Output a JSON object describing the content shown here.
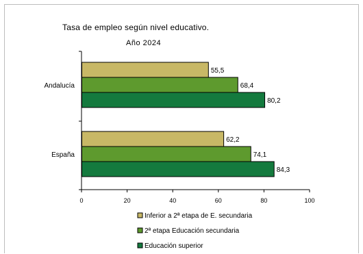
{
  "chart_data": {
    "type": "bar",
    "orientation": "horizontal",
    "title": "Tasa de empleo según nivel educativo.",
    "subtitle": "Año 2024",
    "categories": [
      "Andalucía",
      "España"
    ],
    "series": [
      {
        "name": "Inferior a 2ª etapa de E. secundaria",
        "color": "#c8b866",
        "values": [
          55.5,
          62.2
        ],
        "labels": [
          "55,5",
          "62,2"
        ]
      },
      {
        "name": "2ª etapa Educación secundaria",
        "color": "#5e9a2e",
        "values": [
          68.4,
          74.1
        ],
        "labels": [
          "68,4",
          "74,1"
        ]
      },
      {
        "name": "Educación superior",
        "color": "#147a3e",
        "values": [
          80.2,
          84.3
        ],
        "labels": [
          "80,2",
          "84,3"
        ]
      }
    ],
    "xlim": [
      0,
      100
    ],
    "xticks": [
      0,
      20,
      40,
      60,
      80,
      100
    ],
    "xtick_labels": [
      "0",
      "20",
      "40",
      "60",
      "80",
      "100"
    ],
    "grid": false,
    "legend_position": "bottom"
  }
}
